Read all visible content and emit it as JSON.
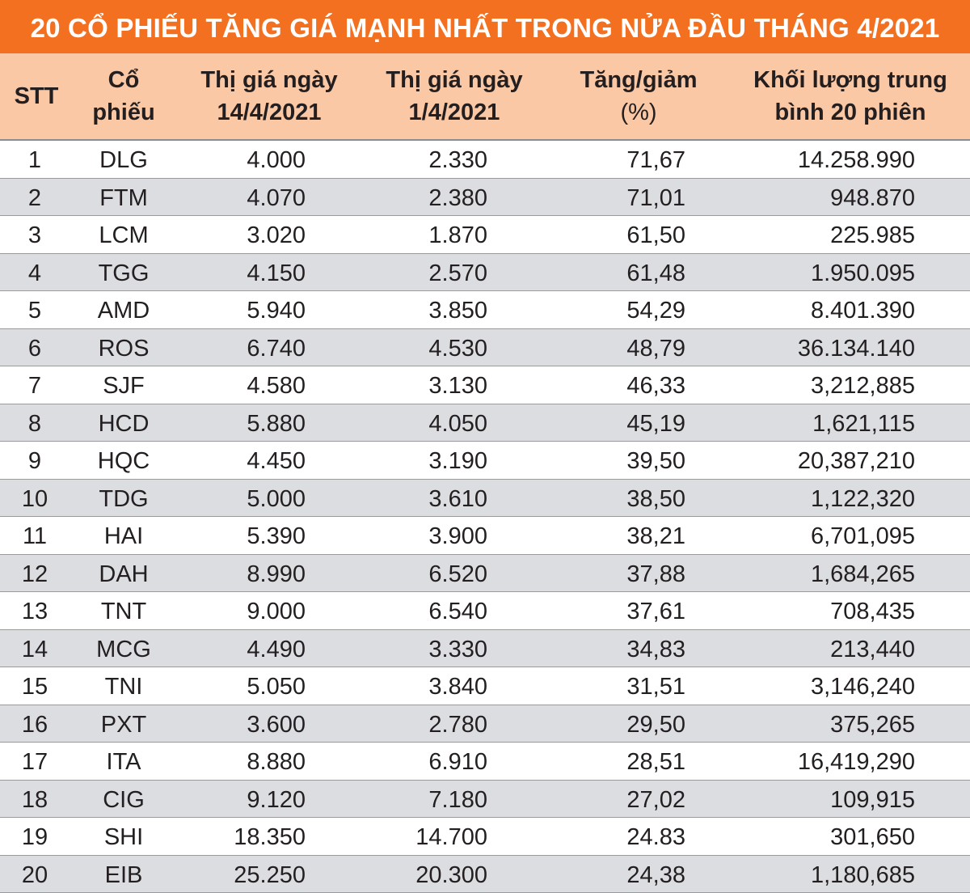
{
  "header": {
    "title": "20 CỔ PHIẾU TĂNG GIÁ MẠNH NHẤT TRONG NỬA ĐẦU THÁNG 4/2021"
  },
  "table": {
    "columns": [
      [
        "STT"
      ],
      [
        "Cổ",
        "phiếu"
      ],
      [
        "Thị giá ngày",
        "14/4/2021"
      ],
      [
        "Thị giá ngày",
        "1/4/2021"
      ],
      [
        "Tăng/giảm",
        "(%)"
      ],
      [
        "Khối lượng trung",
        "bình 20 phiên"
      ]
    ],
    "rows": [
      [
        "1",
        "DLG",
        "4.000",
        "2.330",
        "71,67",
        "14.258.990"
      ],
      [
        "2",
        "FTM",
        "4.070",
        "2.380",
        "71,01",
        "948.870"
      ],
      [
        "3",
        "LCM",
        "3.020",
        "1.870",
        "61,50",
        "225.985"
      ],
      [
        "4",
        "TGG",
        "4.150",
        "2.570",
        "61,48",
        "1.950.095"
      ],
      [
        "5",
        "AMD",
        "5.940",
        "3.850",
        "54,29",
        "8.401.390"
      ],
      [
        "6",
        "ROS",
        "6.740",
        "4.530",
        "48,79",
        "36.134.140"
      ],
      [
        "7",
        "SJF",
        "4.580",
        "3.130",
        "46,33",
        "3,212,885"
      ],
      [
        "8",
        "HCD",
        "5.880",
        "4.050",
        "45,19",
        "1,621,115"
      ],
      [
        "9",
        "HQC",
        "4.450",
        "3.190",
        "39,50",
        "20,387,210"
      ],
      [
        "10",
        "TDG",
        "5.000",
        "3.610",
        "38,50",
        "1,122,320"
      ],
      [
        "11",
        "HAI",
        "5.390",
        "3.900",
        "38,21",
        "6,701,095"
      ],
      [
        "12",
        "DAH",
        "8.990",
        "6.520",
        "37,88",
        "1,684,265"
      ],
      [
        "13",
        "TNT",
        "9.000",
        "6.540",
        "37,61",
        "708,435"
      ],
      [
        "14",
        "MCG",
        "4.490",
        "3.330",
        "34,83",
        "213,440"
      ],
      [
        "15",
        "TNI",
        "5.050",
        "3.840",
        "31,51",
        "3,146,240"
      ],
      [
        "16",
        "PXT",
        "3.600",
        "2.780",
        "29,50",
        "375,265"
      ],
      [
        "17",
        "ITA",
        "8.880",
        "6.910",
        "28,51",
        "16,419,290"
      ],
      [
        "18",
        "CIG",
        "9.120",
        "7.180",
        "27,02",
        "109,915"
      ],
      [
        "19",
        "SHI",
        "18.350",
        "14.700",
        "24.83",
        "301,650"
      ],
      [
        "20",
        "EIB",
        "25.250",
        "20.300",
        "24,38",
        "1,180,685"
      ]
    ]
  }
}
